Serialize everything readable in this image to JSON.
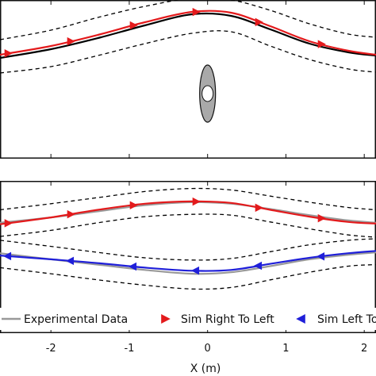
{
  "chart_data": [
    {
      "type": "line",
      "title": "",
      "xlabel": "",
      "ylabel": "",
      "xlim": [
        -2.65,
        2.15
      ],
      "ylim": [
        -1.0,
        1.0
      ],
      "obstacle": {
        "x": 0.0,
        "y": -0.18
      },
      "series": [
        {
          "name": "",
          "color": "#000000",
          "style": "solid",
          "x": [
            -2.65,
            -2.0,
            -1.4,
            -0.8,
            -0.2,
            0.3,
            0.8,
            1.3,
            1.8,
            2.15
          ],
          "y": [
            0.27,
            0.38,
            0.52,
            0.68,
            0.82,
            0.8,
            0.63,
            0.45,
            0.34,
            0.3
          ]
        },
        {
          "name": "",
          "color": "#e31a1c",
          "style": "solid",
          "marker": "triangle-right",
          "x": [
            -2.65,
            -2.0,
            -1.4,
            -0.8,
            -0.2,
            0.3,
            0.8,
            1.3,
            1.8,
            2.15
          ],
          "y": [
            0.31,
            0.42,
            0.56,
            0.72,
            0.85,
            0.84,
            0.67,
            0.48,
            0.36,
            0.31
          ]
        },
        {
          "name": "",
          "color": "#000000",
          "style": "dashed",
          "x": [
            -2.65,
            -2.0,
            -1.4,
            -0.8,
            -0.2,
            0.3,
            0.8,
            1.3,
            1.8,
            2.15
          ],
          "y": [
            0.5,
            0.62,
            0.78,
            0.92,
            1.02,
            1.0,
            0.87,
            0.7,
            0.57,
            0.53
          ]
        },
        {
          "name": "",
          "color": "#000000",
          "style": "dashed",
          "x": [
            -2.65,
            -2.0,
            -1.4,
            -0.8,
            -0.2,
            0.3,
            0.8,
            1.3,
            1.8,
            2.15
          ],
          "y": [
            0.08,
            0.16,
            0.3,
            0.45,
            0.58,
            0.6,
            0.42,
            0.25,
            0.13,
            0.09
          ]
        }
      ]
    },
    {
      "type": "line",
      "title": "",
      "xlabel": "X (m)",
      "ylabel": "",
      "xlim": [
        -2.65,
        2.15
      ],
      "ylim": [
        -1.0,
        1.0
      ],
      "xticks": [
        -2,
        -1,
        0,
        1,
        2
      ],
      "xticklabels": [
        "-2",
        "-1",
        "0",
        "1",
        "2"
      ],
      "series": [
        {
          "name": "Experimental Data",
          "color": "#999999",
          "style": "solid",
          "x": [
            -2.65,
            -2.0,
            -1.4,
            -0.8,
            -0.2,
            0.3,
            0.8,
            1.3,
            1.8,
            2.15
          ],
          "y": [
            0.45,
            0.52,
            0.6,
            0.68,
            0.72,
            0.7,
            0.63,
            0.55,
            0.48,
            0.45
          ]
        },
        {
          "name": "Sim Right To Left",
          "color": "#e31a1c",
          "style": "solid",
          "marker": "triangle-right",
          "x": [
            -2.65,
            -2.0,
            -1.4,
            -0.8,
            -0.2,
            0.3,
            0.8,
            1.3,
            1.8,
            2.15
          ],
          "y": [
            0.43,
            0.52,
            0.62,
            0.7,
            0.73,
            0.71,
            0.62,
            0.53,
            0.46,
            0.44
          ]
        },
        {
          "name": "",
          "color": "#000000",
          "style": "dashed",
          "x": [
            -2.65,
            -2.0,
            -1.4,
            -0.8,
            -0.2,
            0.3,
            0.8,
            1.3,
            1.8,
            2.15
          ],
          "y": [
            0.62,
            0.7,
            0.78,
            0.86,
            0.9,
            0.88,
            0.8,
            0.72,
            0.65,
            0.62
          ]
        },
        {
          "name": "",
          "color": "#000000",
          "style": "dashed",
          "x": [
            -2.65,
            -2.0,
            -1.4,
            -0.8,
            -0.2,
            0.3,
            0.8,
            1.3,
            1.8,
            2.15
          ],
          "y": [
            0.27,
            0.35,
            0.45,
            0.53,
            0.56,
            0.55,
            0.46,
            0.37,
            0.29,
            0.26
          ]
        },
        {
          "name": "",
          "color": "#999999",
          "style": "solid",
          "x": [
            -2.65,
            -2.0,
            -1.4,
            -0.8,
            -0.2,
            0.3,
            0.8,
            1.3,
            1.8,
            2.15
          ],
          "y": [
            0.05,
            -0.03,
            -0.1,
            -0.17,
            -0.22,
            -0.2,
            -0.12,
            -0.03,
            0.03,
            0.06
          ]
        },
        {
          "name": "Sim Left To Right",
          "color": "#1f1fd9",
          "style": "solid",
          "marker": "triangle-left",
          "x": [
            -2.65,
            -2.0,
            -1.4,
            -0.8,
            -0.2,
            0.3,
            0.8,
            1.3,
            1.8,
            2.15
          ],
          "y": [
            0.02,
            -0.03,
            -0.08,
            -0.14,
            -0.18,
            -0.17,
            -0.09,
            -0.01,
            0.05,
            0.08
          ]
        },
        {
          "name": "",
          "color": "#000000",
          "style": "dashed",
          "x": [
            -2.65,
            -2.0,
            -1.4,
            -0.8,
            -0.2,
            0.3,
            0.8,
            1.3,
            1.8,
            2.15
          ],
          "y": [
            0.22,
            0.14,
            0.06,
            -0.01,
            -0.04,
            -0.02,
            0.07,
            0.16,
            0.22,
            0.24
          ]
        },
        {
          "name": "",
          "color": "#000000",
          "style": "dashed",
          "x": [
            -2.65,
            -2.0,
            -1.4,
            -0.8,
            -0.2,
            0.3,
            0.8,
            1.3,
            1.8,
            2.15
          ],
          "y": [
            -0.14,
            -0.22,
            -0.3,
            -0.37,
            -0.42,
            -0.4,
            -0.3,
            -0.2,
            -0.12,
            -0.1
          ]
        }
      ],
      "legend": {
        "placement": "lower-center",
        "entries": [
          {
            "label": "Experimental Data",
            "color": "#999999",
            "marker": "line"
          },
          {
            "label": "Sim Right To Left",
            "color": "#e31a1c",
            "marker": "triangle-right"
          },
          {
            "label": "Sim Left To Right",
            "color": "#1f1fd9",
            "marker": "triangle-left"
          }
        ]
      }
    }
  ]
}
